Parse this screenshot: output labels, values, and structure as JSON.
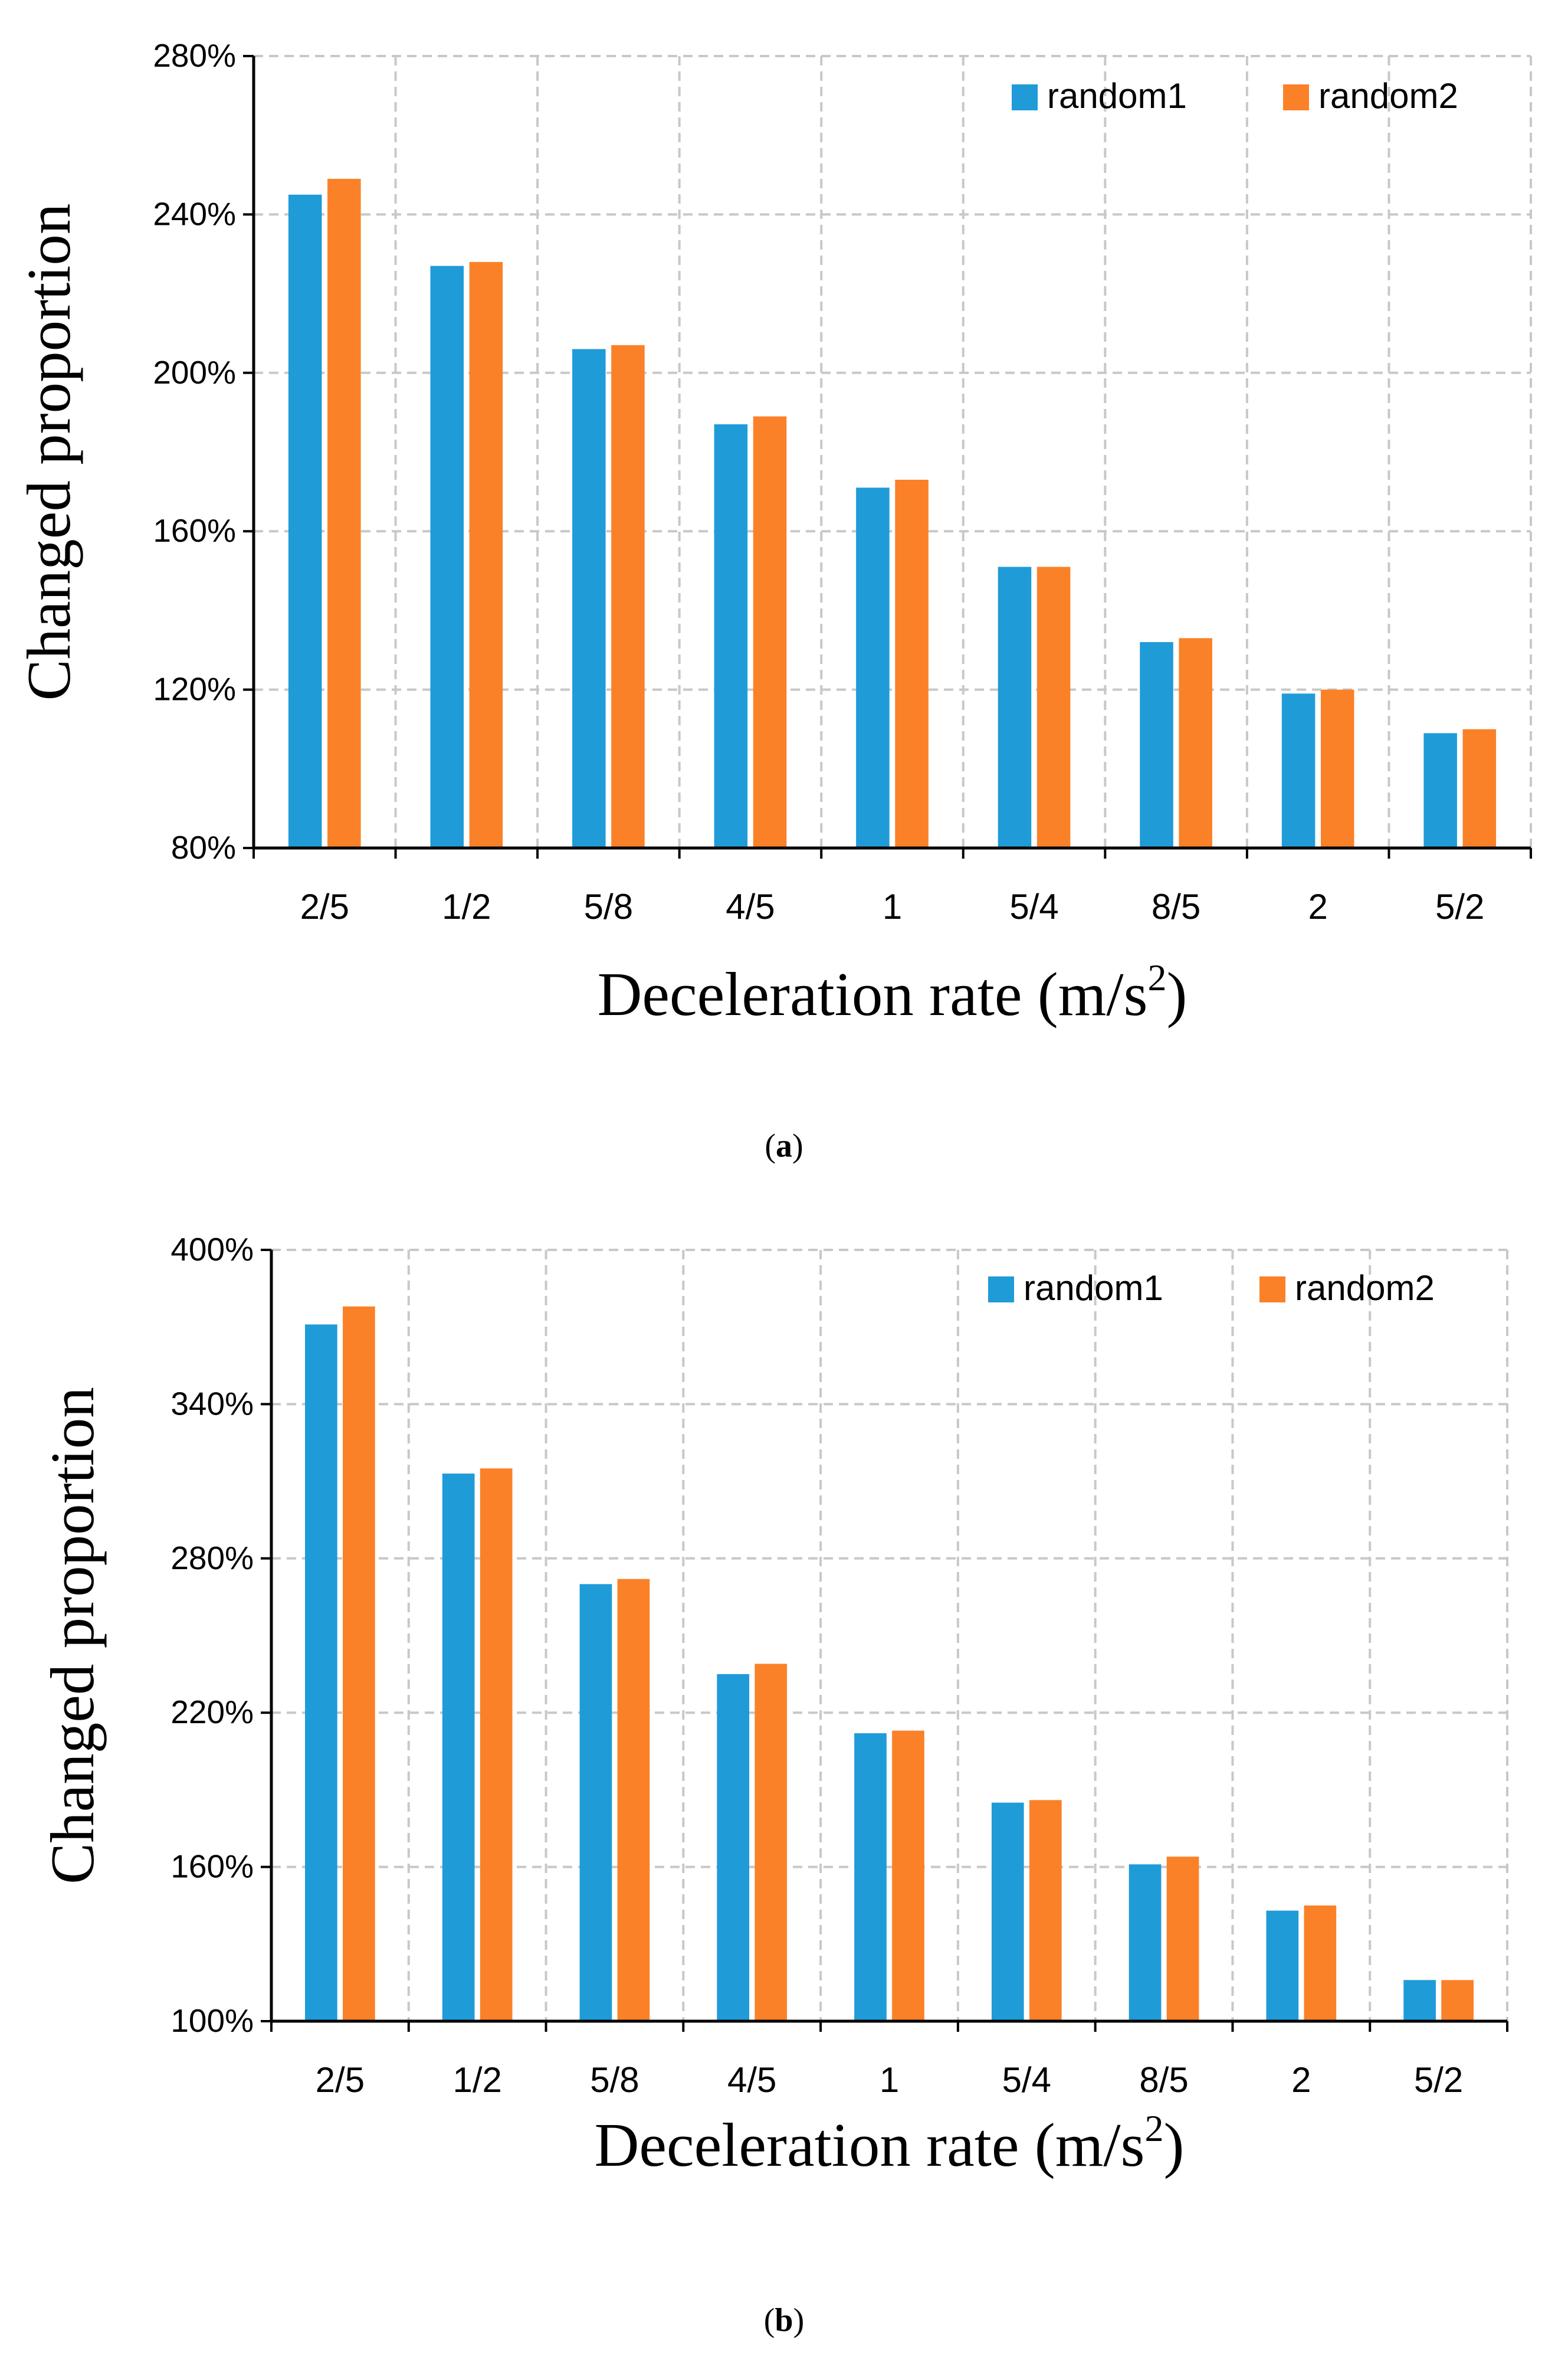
{
  "chart_data": [
    {
      "type": "bar",
      "panel_label": "a",
      "categories": [
        "2/5",
        "1/2",
        "5/8",
        "4/5",
        "1",
        "5/4",
        "8/5",
        "2",
        "5/2"
      ],
      "series": [
        {
          "name": "random1",
          "values": [
            245,
            227,
            206,
            187,
            171,
            151,
            132,
            119,
            109
          ]
        },
        {
          "name": "random2",
          "values": [
            249,
            228,
            207,
            189,
            173,
            151,
            133,
            120,
            110
          ]
        }
      ],
      "ylim": [
        80,
        280
      ],
      "yticks": [
        "80%",
        "120%",
        "160%",
        "200%",
        "240%",
        "280%"
      ],
      "ytick_values": [
        80,
        120,
        160,
        200,
        240,
        280
      ],
      "xlabel": "Deceleration rate (m/s",
      "xlabel_sup": "2",
      "xlabel_end": ")",
      "ylabel": "Changed proportion",
      "grid": true,
      "legend": "top-right"
    },
    {
      "type": "bar",
      "panel_label": "b",
      "categories": [
        "2/5",
        "1/2",
        "5/8",
        "4/5",
        "1",
        "5/4",
        "8/5",
        "2",
        "5/2"
      ],
      "series": [
        {
          "name": "random1",
          "values": [
            371,
            313,
            270,
            235,
            212,
            185,
            161,
            143,
            116
          ]
        },
        {
          "name": "random2",
          "values": [
            378,
            315,
            272,
            239,
            213,
            186,
            164,
            145,
            116
          ]
        }
      ],
      "ylim": [
        100,
        400
      ],
      "yticks": [
        "100%",
        "160%",
        "220%",
        "280%",
        "340%",
        "400%"
      ],
      "ytick_values": [
        100,
        160,
        220,
        280,
        340,
        400
      ],
      "xlabel": "Deceleration rate (m/s",
      "xlabel_sup": "2",
      "xlabel_end": ")",
      "ylabel": "Changed proportion",
      "grid": true,
      "legend": "top-right"
    }
  ],
  "colors": {
    "random1": "#1f9bd8",
    "random2": "#fa8128"
  }
}
